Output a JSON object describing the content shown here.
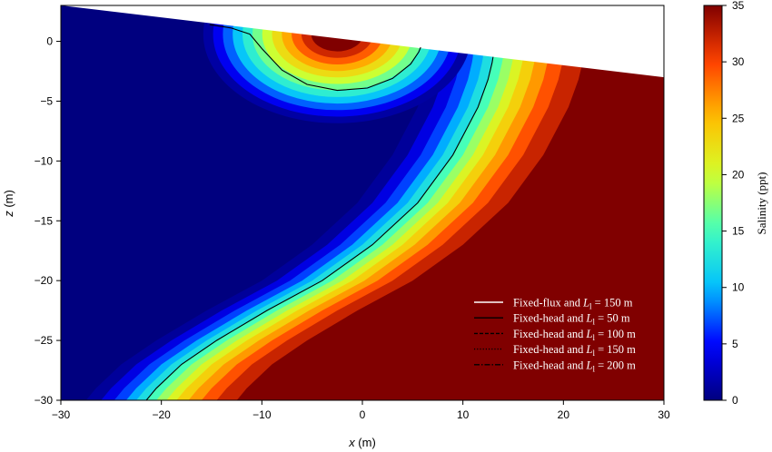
{
  "chart_data": {
    "type": "heatmap",
    "xlabel_var": "x",
    "xlabel_unit": " (m)",
    "ylabel_var": "z",
    "ylabel_unit": " (m)",
    "xlim": [
      -30,
      30
    ],
    "ylim": [
      -30,
      3
    ],
    "xticks": [
      -30,
      -20,
      -10,
      0,
      10,
      20,
      30
    ],
    "yticks": [
      0,
      -5,
      -10,
      -15,
      -20,
      -25,
      -30
    ],
    "colorbar": {
      "label": "Salinity (ppt)",
      "range": [
        0,
        35
      ],
      "ticks": [
        0,
        5,
        10,
        15,
        20,
        25,
        30,
        35
      ],
      "colormap": "jet",
      "colors": [
        "#00007f",
        "#0000ff",
        "#00bfff",
        "#40ffbf",
        "#d4ff2b",
        "#ffbf00",
        "#ff4000",
        "#800000"
      ]
    },
    "beach_surface": {
      "x": [
        -30,
        30
      ],
      "z": [
        3,
        -3
      ]
    },
    "upper_saline_plume_isoline": {
      "x": [
        -15.2,
        -13.0,
        -11.2,
        -10.0,
        -8.0,
        -5.5,
        -2.5,
        0.5,
        3.0,
        4.8,
        5.6,
        5.8
      ],
      "z": [
        1.4,
        1.1,
        0.6,
        -0.6,
        -2.4,
        -3.6,
        -4.1,
        -3.9,
        -3.1,
        -1.9,
        -0.9,
        -0.5
      ]
    },
    "saltwater_wedge_isoline": {
      "x": [
        -21.5,
        -20.5,
        -18.0,
        -14.5,
        -9.5,
        -4.0,
        1.0,
        5.5,
        9.0,
        11.5,
        12.5,
        12.9,
        13.0
      ],
      "z": [
        -30.0,
        -29.0,
        -27.0,
        -25.0,
        -22.5,
        -20.0,
        -17.0,
        -13.5,
        -9.5,
        -5.5,
        -3.2,
        -1.8,
        -1.3
      ]
    },
    "legend": {
      "placement": "lower-right",
      "entries": [
        {
          "label_pre": "Fixed-flux and ",
          "label_var": "L",
          "label_sub": "l",
          "label_post": " = 150 m",
          "color": "#ffffff",
          "dash": "solid"
        },
        {
          "label_pre": "Fixed-head and ",
          "label_var": "L",
          "label_sub": "l",
          "label_post": " = 50 m",
          "color": "#000000",
          "dash": "solid"
        },
        {
          "label_pre": "Fixed-head and ",
          "label_var": "L",
          "label_sub": "l",
          "label_post": " = 100 m",
          "color": "#000000",
          "dash": "dashed"
        },
        {
          "label_pre": "Fixed-head and ",
          "label_var": "L",
          "label_sub": "l",
          "label_post": " = 150 m",
          "color": "#000000",
          "dash": "dotted"
        },
        {
          "label_pre": "Fixed-head and ",
          "label_var": "L",
          "label_sub": "l",
          "label_post": " = 200 m",
          "color": "#000000",
          "dash": "dashdot"
        }
      ]
    }
  }
}
